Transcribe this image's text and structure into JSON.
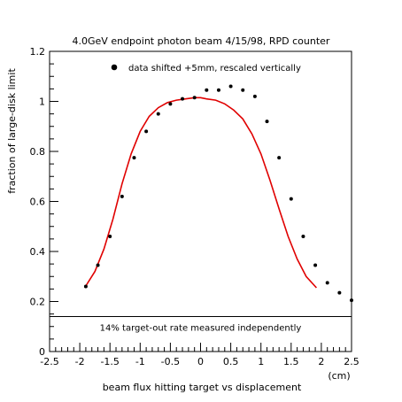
{
  "chart_data": {
    "type": "scatter",
    "title": "4.0GeV endpoint photon beam 4/15/98, RPD counter",
    "xlabel": "beam flux hitting target vs displacement",
    "xunit": "(cm)",
    "ylabel": "fraction of large-disk limit",
    "xlim": [
      -2.5,
      2.5
    ],
    "ylim": [
      0,
      1.2
    ],
    "xticks": [
      "-2.5",
      "-2",
      "-1.5",
      "-1",
      "-0.5",
      "0",
      "0.5",
      "1",
      "1.5",
      "2",
      "2.5"
    ],
    "yticks": [
      "0",
      "0.2",
      "0.4",
      "0.6",
      "0.8",
      "1",
      "1.2"
    ],
    "grid": false,
    "legend": "top-left",
    "reference_line": {
      "y": 0.14,
      "label": "14% target-out rate measured independently"
    },
    "series": [
      {
        "name": "data shifted +5mm, rescaled vertically",
        "kind": "points",
        "color": "#000000",
        "x": [
          -1.9,
          -1.7,
          -1.5,
          -1.3,
          -1.1,
          -0.9,
          -0.7,
          -0.5,
          -0.3,
          -0.1,
          0.1,
          0.3,
          0.5,
          0.7,
          0.9,
          1.1,
          1.3,
          1.5,
          1.7,
          1.9,
          2.1,
          2.3,
          2.5
        ],
        "y": [
          0.26,
          0.345,
          0.46,
          0.62,
          0.775,
          0.88,
          0.95,
          0.99,
          1.01,
          1.015,
          1.045,
          1.045,
          1.06,
          1.045,
          1.02,
          0.92,
          0.775,
          0.61,
          0.46,
          0.345,
          0.275,
          0.235,
          0.205
        ]
      },
      {
        "kind": "curve",
        "color": "#e00000",
        "x": [
          -1.92,
          -1.75,
          -1.6,
          -1.45,
          -1.3,
          -1.15,
          -1.0,
          -0.85,
          -0.7,
          -0.55,
          -0.4,
          -0.25,
          -0.1,
          0.0,
          0.1,
          0.25,
          0.4,
          0.55,
          0.7,
          0.85,
          1.0,
          1.15,
          1.3,
          1.45,
          1.6,
          1.75,
          1.92
        ],
        "y": [
          0.255,
          0.32,
          0.41,
          0.53,
          0.67,
          0.79,
          0.88,
          0.94,
          0.975,
          0.995,
          1.005,
          1.01,
          1.015,
          1.015,
          1.01,
          1.005,
          0.99,
          0.965,
          0.93,
          0.87,
          0.79,
          0.685,
          0.57,
          0.46,
          0.37,
          0.3,
          0.255
        ]
      }
    ]
  }
}
